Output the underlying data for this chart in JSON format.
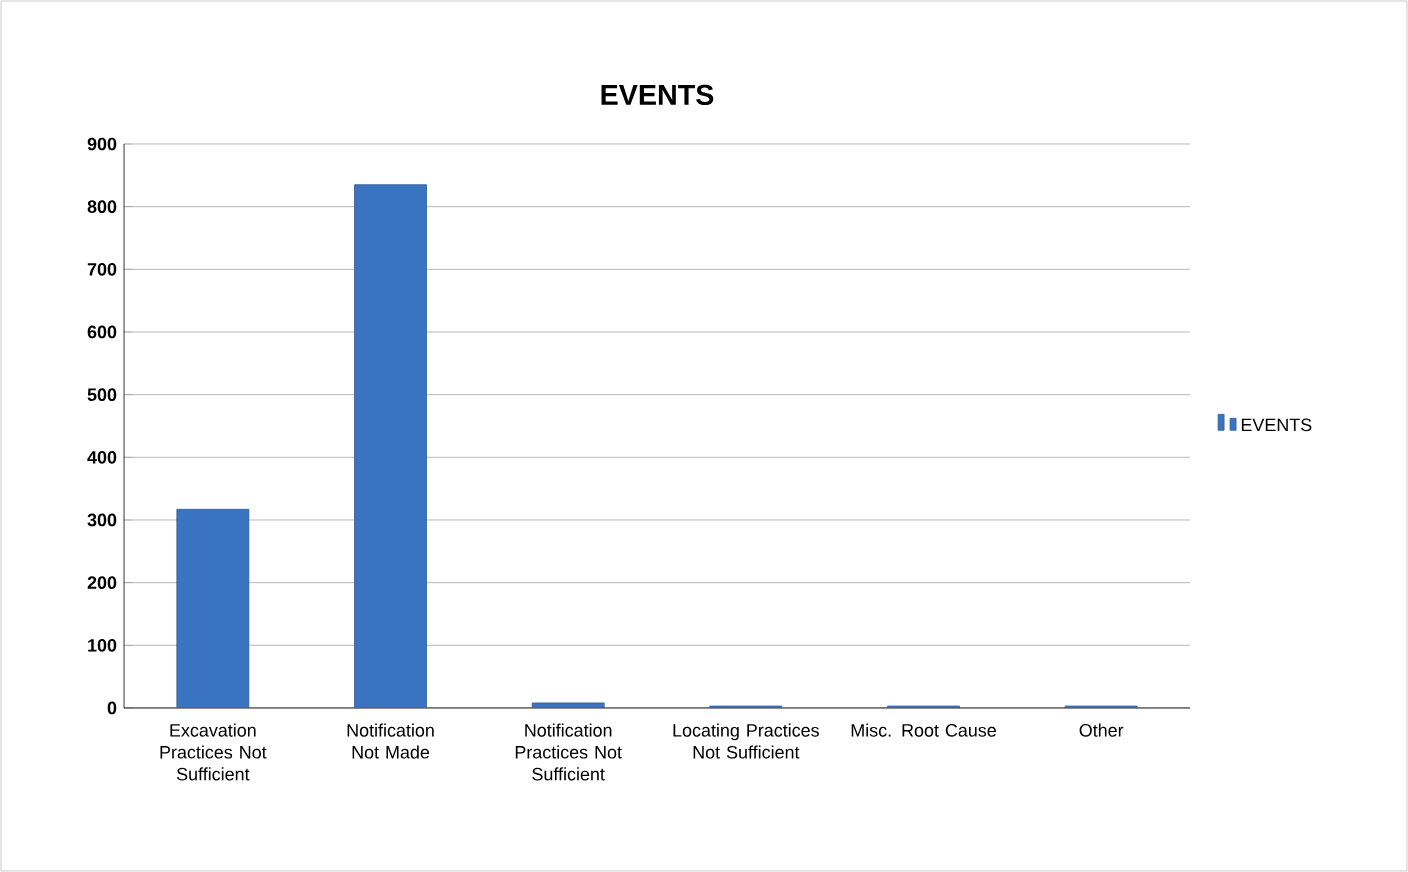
{
  "chart_data": {
    "type": "bar",
    "title": "EVENTS",
    "categories": [
      "Excavation Practices Not Sufficient",
      "Notification Not Made",
      "Notification Practices Not Sufficient",
      "Locating Practices Not Sufficient",
      "Misc. Root Cause",
      "Other"
    ],
    "series": [
      {
        "name": "EVENTS",
        "color": "#3a74c0",
        "values": [
          317,
          835,
          8,
          3,
          3,
          3
        ]
      }
    ],
    "ylim": [
      0,
      900
    ],
    "yticks": [
      0,
      100,
      200,
      300,
      400,
      500,
      600,
      700,
      800,
      900
    ],
    "grid": "y",
    "legend": "right"
  }
}
